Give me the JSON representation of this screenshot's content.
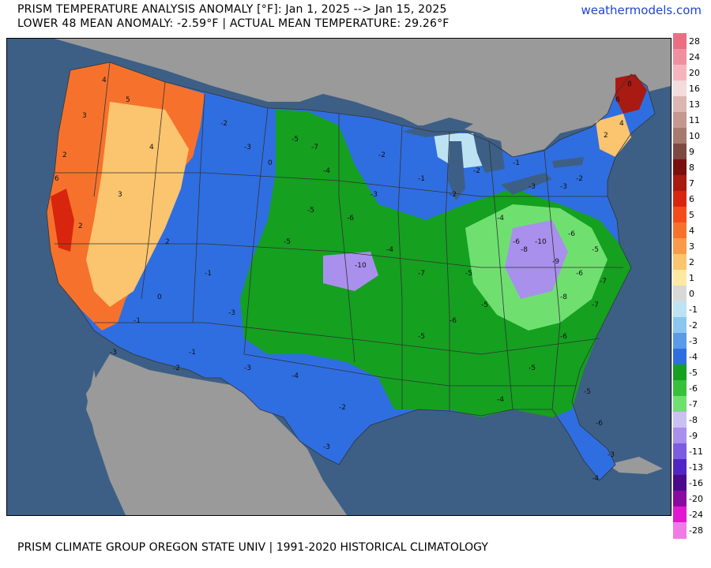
{
  "header": {
    "title_line1": "PRISM TEMPERATURE ANALYSIS ANOMALY [°F]: Jan 1, 2025 --> Jan 15, 2025",
    "title_line2": "LOWER 48 MEAN ANOMALY: -2.59°F | ACTUAL MEAN TEMPERATURE: 29.26°F",
    "brand": "weathermodels.com"
  },
  "footer": "PRISM CLIMATE GROUP OREGON STATE UNIV | 1991-2020 HISTORICAL CLIMATOLOGY",
  "colors": {
    "ocean": "#3d5f86",
    "outside_land": "#9a9a9a",
    "lakes": "#3d5f86",
    "boundaries": "#333333"
  },
  "legend": [
    {
      "label": "28",
      "color": "#ea6f82"
    },
    {
      "label": "24",
      "color": "#f0909e"
    },
    {
      "label": "20",
      "color": "#f6b5bd"
    },
    {
      "label": "16",
      "color": "#f3dcdc"
    },
    {
      "label": "13",
      "color": "#dcb7b2"
    },
    {
      "label": "11",
      "color": "#c49890"
    },
    {
      "label": "10",
      "color": "#a67a6f"
    },
    {
      "label": "9",
      "color": "#7d4a42"
    },
    {
      "label": "8",
      "color": "#7a0f0f"
    },
    {
      "label": "7",
      "color": "#a81a12"
    },
    {
      "label": "6",
      "color": "#d8260e"
    },
    {
      "label": "5",
      "color": "#f44b1c"
    },
    {
      "label": "4",
      "color": "#f6722c"
    },
    {
      "label": "3",
      "color": "#f89a48"
    },
    {
      "label": "2",
      "color": "#fbc46e"
    },
    {
      "label": "1",
      "color": "#fde9a0"
    },
    {
      "label": "0",
      "color": "#d8d8d8"
    },
    {
      "label": "-1",
      "color": "#bde3f2"
    },
    {
      "label": "-2",
      "color": "#8cc6ee"
    },
    {
      "label": "-3",
      "color": "#5a9ae6"
    },
    {
      "label": "-4",
      "color": "#2f6ee0"
    },
    {
      "label": "-5",
      "color": "#15a020"
    },
    {
      "label": "-6",
      "color": "#35c23a"
    },
    {
      "label": "-7",
      "color": "#6fe070"
    },
    {
      "label": "-8",
      "color": "#cbc0f2"
    },
    {
      "label": "-9",
      "color": "#a890ec"
    },
    {
      "label": "-11",
      "color": "#7c5ce0"
    },
    {
      "label": "-13",
      "color": "#5226c4"
    },
    {
      "label": "-16",
      "color": "#4a0a8c"
    },
    {
      "label": "-20",
      "color": "#8a0aa0"
    },
    {
      "label": "-24",
      "color": "#e018d0"
    },
    {
      "label": "-28",
      "color": "#f27ae6"
    }
  ],
  "map_labels": [
    {
      "t": "4"
    },
    {
      "t": "5"
    },
    {
      "t": "3"
    },
    {
      "t": "2"
    },
    {
      "t": "6"
    },
    {
      "t": "3"
    },
    {
      "t": "2"
    },
    {
      "t": "4"
    },
    {
      "t": "-2"
    },
    {
      "t": "-3"
    },
    {
      "t": "0"
    },
    {
      "t": "2"
    },
    {
      "t": "-1"
    },
    {
      "t": "-3"
    },
    {
      "t": "-5"
    },
    {
      "t": "-7"
    },
    {
      "t": "-4"
    },
    {
      "t": "-5"
    },
    {
      "t": "-6"
    },
    {
      "t": "-5"
    },
    {
      "t": "-3"
    },
    {
      "t": "-2"
    },
    {
      "t": "-1"
    },
    {
      "t": "-2"
    },
    {
      "t": "-4"
    },
    {
      "t": "-10"
    },
    {
      "t": "-7"
    },
    {
      "t": "-5"
    },
    {
      "t": "-4"
    },
    {
      "t": "-6"
    },
    {
      "t": "-5"
    },
    {
      "t": "-3"
    },
    {
      "t": "-4"
    },
    {
      "t": "-2"
    },
    {
      "t": "-3"
    },
    {
      "t": "-1"
    },
    {
      "t": "-5"
    },
    {
      "t": "-6"
    },
    {
      "t": "-8"
    },
    {
      "t": "-10"
    },
    {
      "t": "-9"
    },
    {
      "t": "-6"
    },
    {
      "t": "-7"
    },
    {
      "t": "-6"
    },
    {
      "t": "-5"
    },
    {
      "t": "-4"
    },
    {
      "t": "-2"
    },
    {
      "t": "-1"
    },
    {
      "t": "-3"
    },
    {
      "t": "-2"
    },
    {
      "t": "2"
    },
    {
      "t": "4"
    },
    {
      "t": "6"
    },
    {
      "t": "8"
    },
    {
      "t": "-5"
    },
    {
      "t": "-6"
    },
    {
      "t": "-7"
    },
    {
      "t": "-8"
    },
    {
      "t": "-5"
    },
    {
      "t": "-6"
    },
    {
      "t": "-3"
    },
    {
      "t": "-4"
    },
    {
      "t": "-3"
    },
    {
      "t": "0"
    },
    {
      "t": "-1"
    },
    {
      "t": "-3"
    },
    {
      "t": "-2"
    }
  ]
}
